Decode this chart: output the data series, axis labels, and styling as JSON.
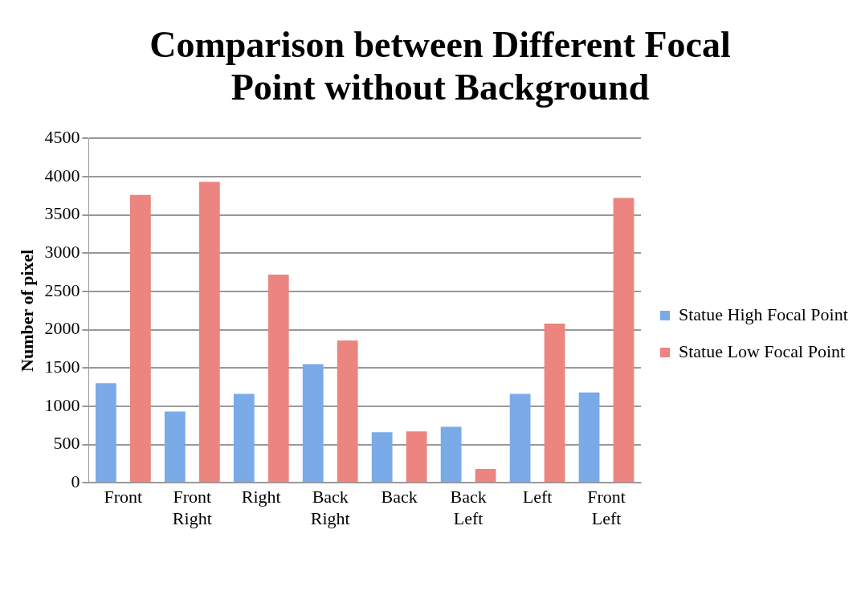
{
  "chart_data": {
    "type": "bar",
    "title": "Comparison between Different Focal Point without Background",
    "ylabel": "Number of pixel",
    "categories": [
      "Front",
      "Front Right",
      "Right",
      "Back Right",
      "Back",
      "Back Left",
      "Left",
      "Front Left"
    ],
    "series": [
      {
        "name": "Statue High Focal Point",
        "color": "#7aaae8",
        "values": [
          1300,
          930,
          1160,
          1550,
          660,
          730,
          1160,
          1180
        ]
      },
      {
        "name": "Statue Low Focal Point",
        "color": "#ec8480",
        "values": [
          3760,
          3930,
          2720,
          1860,
          670,
          180,
          2080,
          3720
        ]
      }
    ],
    "ylim": [
      0,
      4500
    ],
    "yticks": [
      0,
      500,
      1000,
      1500,
      2000,
      2500,
      3000,
      3500,
      4000,
      4500
    ],
    "grid": "y",
    "legend": "right"
  }
}
